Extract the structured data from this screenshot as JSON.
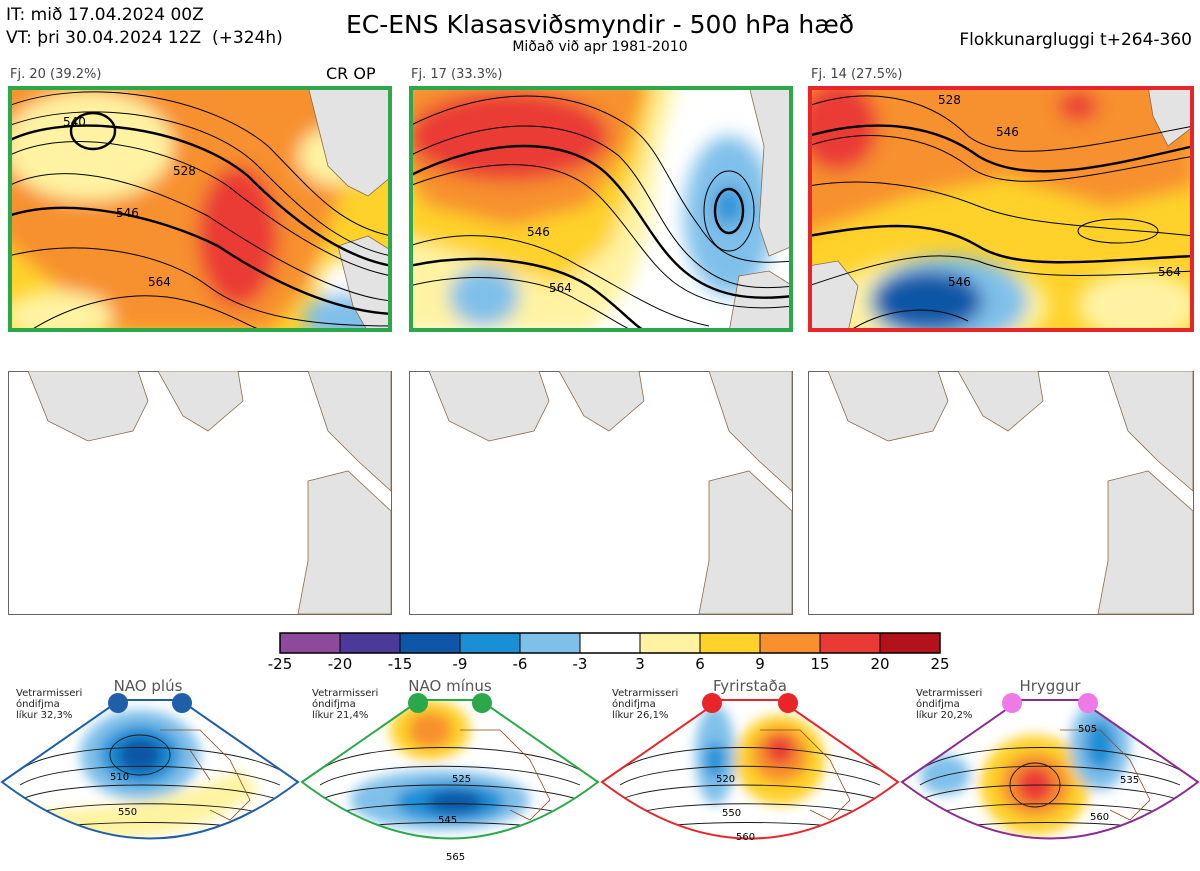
{
  "header": {
    "it_line": "IT: mið 17.04.2024 00Z",
    "vt_line": "VT: þri 30.04.2024 12Z  (+324h)",
    "title": "EC-ENS Klasasviðsmyndir - 500 hPa hæð",
    "subtitle": "Miðað við apr 1981-2010",
    "window": "Flokkunargluggi t+264-360"
  },
  "clusters": [
    {
      "label": "Fj. 20 (39.2%)",
      "border": "#2aa84a",
      "contours": [
        "528",
        "546",
        "564",
        "540"
      ],
      "tag": "CR OP"
    },
    {
      "label": "Fj. 17 (33.3%)",
      "border": "#2aa84a",
      "contours": [
        "546",
        "564"
      ]
    },
    {
      "label": "Fj. 14 (27.5%)",
      "border": "#e8262a",
      "contours": [
        "546",
        "564",
        "528",
        "546"
      ]
    }
  ],
  "colorbar": {
    "ticks": [
      "-25",
      "-20",
      "-15",
      "-9",
      "-6",
      "-3",
      "3",
      "6",
      "9",
      "15",
      "20",
      "25"
    ],
    "colors": [
      "#8d4a9c",
      "#4b3a9a",
      "#0d57a6",
      "#1b8fd6",
      "#7fc0ea",
      "#ffffff",
      "#fff3a3",
      "#fed22a",
      "#f7902e",
      "#ea3a34",
      "#b4121a"
    ]
  },
  "regimes": [
    {
      "title": "NAO plús",
      "note": [
        "Vetrarmisseri",
        "óndifjma",
        "líkur 32,3%"
      ],
      "color": "#1f5fa8",
      "dot": "#1f5fa8",
      "labels": [
        "510",
        "550"
      ]
    },
    {
      "title": "NAO mínus",
      "note": [
        "Vetrarmisseri",
        "óndifjma",
        "líkur 21,4%"
      ],
      "color": "#2aa84a",
      "dot": "#2aa84a",
      "labels": [
        "525",
        "545",
        "565"
      ]
    },
    {
      "title": "Fyrirstaða",
      "note": [
        "Vetrarmisseri",
        "óndifjma",
        "líkur 26,1%"
      ],
      "color": "#e8262a",
      "dot": "#e8262a",
      "labels": [
        "520",
        "550",
        "560"
      ]
    },
    {
      "title": "Hryggur",
      "note": [
        "Vetrarmisseri",
        "óndifjma",
        "líkur 20,2%"
      ],
      "color": "#8a2c91",
      "dot": "#ee7ae8",
      "labels": [
        "505",
        "535",
        "560"
      ]
    }
  ]
}
